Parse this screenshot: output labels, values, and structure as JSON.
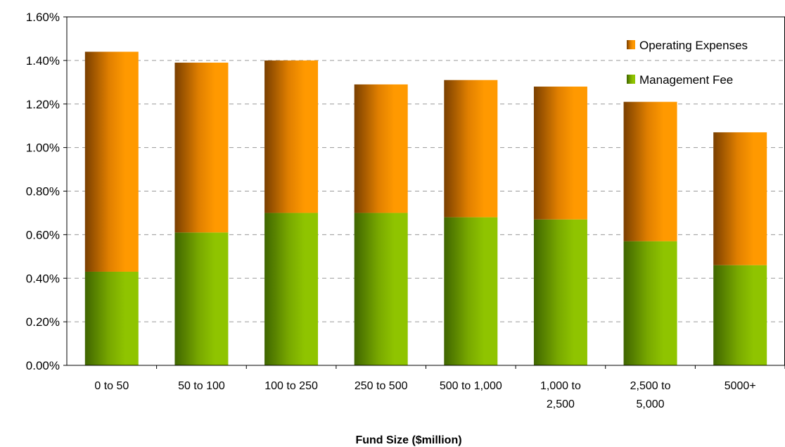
{
  "chart_data": {
    "type": "bar",
    "stacked": true,
    "title": "",
    "xlabel": "Fund Size ($million)",
    "ylabel": "",
    "ylim": [
      0,
      0.016
    ],
    "yticks": [
      "0.00%",
      "0.20%",
      "0.40%",
      "0.60%",
      "0.80%",
      "1.00%",
      "1.20%",
      "1.40%",
      "1.60%"
    ],
    "categories": [
      [
        "0 to 50"
      ],
      [
        "50 to 100"
      ],
      [
        "100 to 250"
      ],
      [
        "250 to 500"
      ],
      [
        "500 to 1,000"
      ],
      [
        "1,000 to",
        "2,500"
      ],
      [
        "2,500 to",
        "5,000"
      ],
      [
        "5000+"
      ]
    ],
    "series": [
      {
        "name": "Management Fee",
        "color": "#8fc400",
        "values": [
          0.0043,
          0.0061,
          0.007,
          0.007,
          0.0068,
          0.0067,
          0.0057,
          0.0046
        ]
      },
      {
        "name": "Operating Expenses",
        "color": "#ff9900",
        "values": [
          0.0101,
          0.0078,
          0.007,
          0.0059,
          0.0063,
          0.0061,
          0.0064,
          0.0061
        ]
      }
    ],
    "grid": true,
    "legend_position": "top-right"
  }
}
